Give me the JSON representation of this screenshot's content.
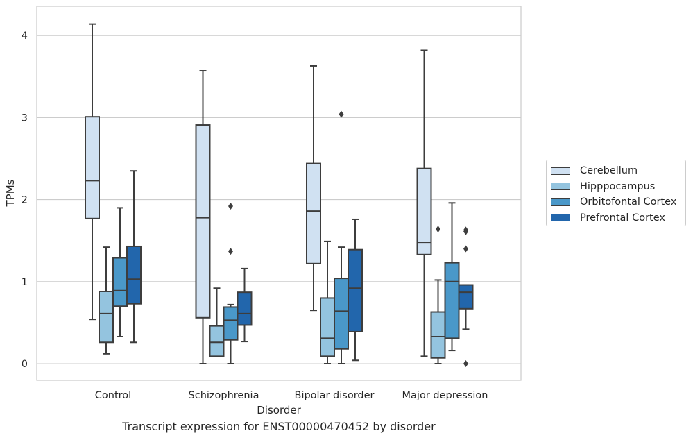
{
  "chart_data": {
    "type": "box",
    "title": "",
    "xlabel": "Disorder",
    "ylabel": "TPMs",
    "ylim": [
      -0.2,
      4.35
    ],
    "yticks": [
      "0",
      "1",
      "2",
      "3",
      "4"
    ],
    "ytick_values": [
      0,
      1,
      2,
      3,
      4
    ],
    "grid": "horizontal",
    "legend_position": "right",
    "categories": [
      "Control",
      "Schizophrenia",
      "Bipolar disorder",
      "Major depression"
    ],
    "series": [
      {
        "name": "Cerebellum",
        "color": "#d0e1f2",
        "boxes": [
          {
            "whisker_low": 0.54,
            "q1": 1.77,
            "median": 2.23,
            "q3": 3.01,
            "whisker_high": 4.14,
            "outliers": []
          },
          {
            "whisker_low": 0.0,
            "q1": 0.56,
            "median": 1.78,
            "q3": 2.91,
            "whisker_high": 3.57,
            "outliers": []
          },
          {
            "whisker_low": 0.65,
            "q1": 1.22,
            "median": 1.86,
            "q3": 2.44,
            "whisker_high": 3.63,
            "outliers": []
          },
          {
            "whisker_low": 0.09,
            "q1": 1.33,
            "median": 1.48,
            "q3": 2.38,
            "whisker_high": 3.82,
            "outliers": []
          }
        ]
      },
      {
        "name": "Hipppocampus",
        "color": "#94c4df",
        "boxes": [
          {
            "whisker_low": 0.12,
            "q1": 0.26,
            "median": 0.61,
            "q3": 0.88,
            "whisker_high": 1.42,
            "outliers": []
          },
          {
            "whisker_low": 0.09,
            "q1": 0.09,
            "median": 0.26,
            "q3": 0.46,
            "whisker_high": 0.92,
            "outliers": []
          },
          {
            "whisker_low": 0.0,
            "q1": 0.09,
            "median": 0.31,
            "q3": 0.8,
            "whisker_high": 1.49,
            "outliers": []
          },
          {
            "whisker_low": 0.0,
            "q1": 0.07,
            "median": 0.33,
            "q3": 0.63,
            "whisker_high": 1.02,
            "outliers": [
              1.64
            ]
          }
        ]
      },
      {
        "name": "Orbitofontal Cortex",
        "color": "#4a98c9",
        "boxes": [
          {
            "whisker_low": 0.33,
            "q1": 0.7,
            "median": 0.89,
            "q3": 1.29,
            "whisker_high": 1.9,
            "outliers": []
          },
          {
            "whisker_low": 0.0,
            "q1": 0.29,
            "median": 0.53,
            "q3": 0.69,
            "whisker_high": 0.72,
            "outliers": [
              1.37,
              1.92
            ]
          },
          {
            "whisker_low": 0.0,
            "q1": 0.18,
            "median": 0.64,
            "q3": 1.04,
            "whisker_high": 1.42,
            "outliers": [
              3.04
            ]
          },
          {
            "whisker_low": 0.16,
            "q1": 0.31,
            "median": 1.0,
            "q3": 1.23,
            "whisker_high": 1.96,
            "outliers": []
          }
        ]
      },
      {
        "name": "Prefrontal Cortex",
        "color": "#2266ac",
        "boxes": [
          {
            "whisker_low": 0.26,
            "q1": 0.73,
            "median": 1.03,
            "q3": 1.43,
            "whisker_high": 2.35,
            "outliers": []
          },
          {
            "whisker_low": 0.27,
            "q1": 0.47,
            "median": 0.61,
            "q3": 0.87,
            "whisker_high": 1.16,
            "outliers": []
          },
          {
            "whisker_low": 0.04,
            "q1": 0.39,
            "median": 0.92,
            "q3": 1.39,
            "whisker_high": 1.76,
            "outliers": []
          },
          {
            "whisker_low": 0.42,
            "q1": 0.67,
            "median": 0.87,
            "q3": 0.96,
            "whisker_high": 0.96,
            "outliers": [
              0.0,
              1.4,
              1.61,
              1.63
            ]
          }
        ]
      }
    ]
  },
  "caption": "Transcript expression for ENST00000470452 by disorder"
}
